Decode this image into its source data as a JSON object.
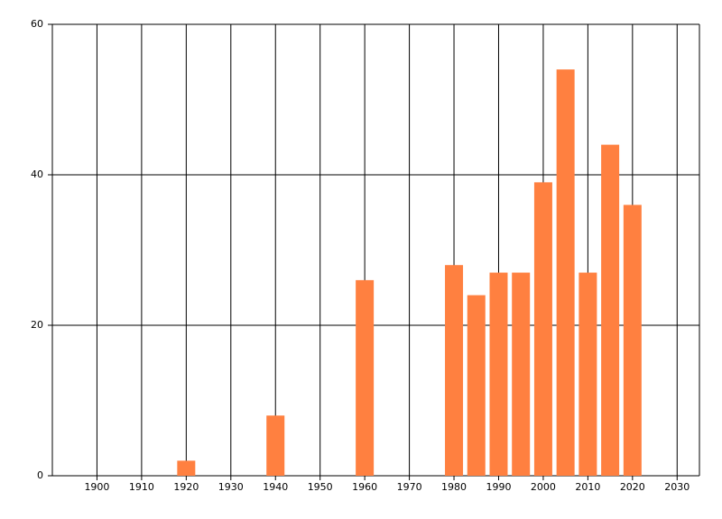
{
  "chart_data": {
    "type": "bar",
    "x": [
      1920,
      1940,
      1960,
      1980,
      1985,
      1990,
      1995,
      2000,
      2005,
      2010,
      2015,
      2020
    ],
    "values": [
      2,
      8,
      26,
      28,
      24,
      27,
      27,
      39,
      54,
      27,
      44,
      36
    ],
    "color": "#ff8040",
    "xlim": [
      1890,
      2035
    ],
    "xticks": [
      1900,
      1910,
      1920,
      1930,
      1940,
      1950,
      1960,
      1970,
      1980,
      1990,
      2000,
      2010,
      2020,
      2030
    ],
    "ylim": [
      0,
      60
    ],
    "yticks": [
      0,
      20,
      40,
      60
    ],
    "grid": true
  }
}
